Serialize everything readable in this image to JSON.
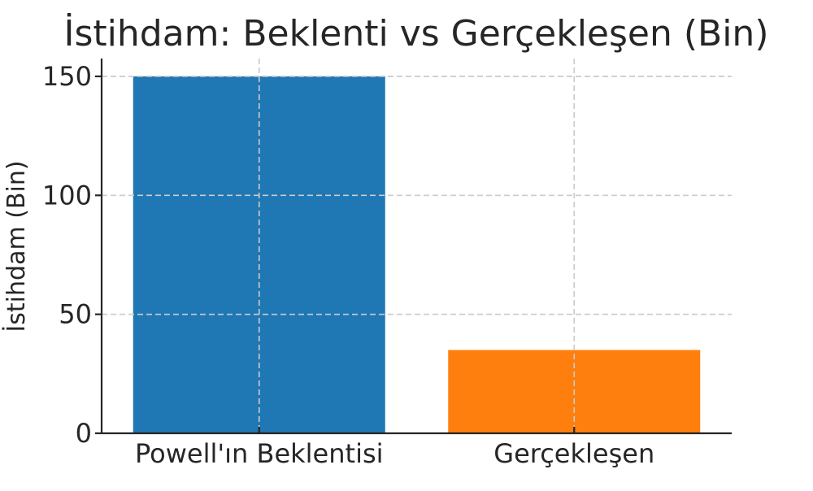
{
  "chart_data": {
    "type": "bar",
    "title": "İstihdam: Beklenti vs Gerçekleşen (Bin)",
    "xlabel": "",
    "ylabel": "İstihdam (Bin)",
    "categories": [
      "Powell'ın Beklentisi",
      "Gerçekleşen"
    ],
    "values": [
      150,
      35
    ],
    "colors": [
      "#1f77b4",
      "#ff7f0e"
    ],
    "ylim": [
      0,
      157.5
    ],
    "yticks": [
      0,
      50,
      100,
      150
    ],
    "grid": true
  }
}
